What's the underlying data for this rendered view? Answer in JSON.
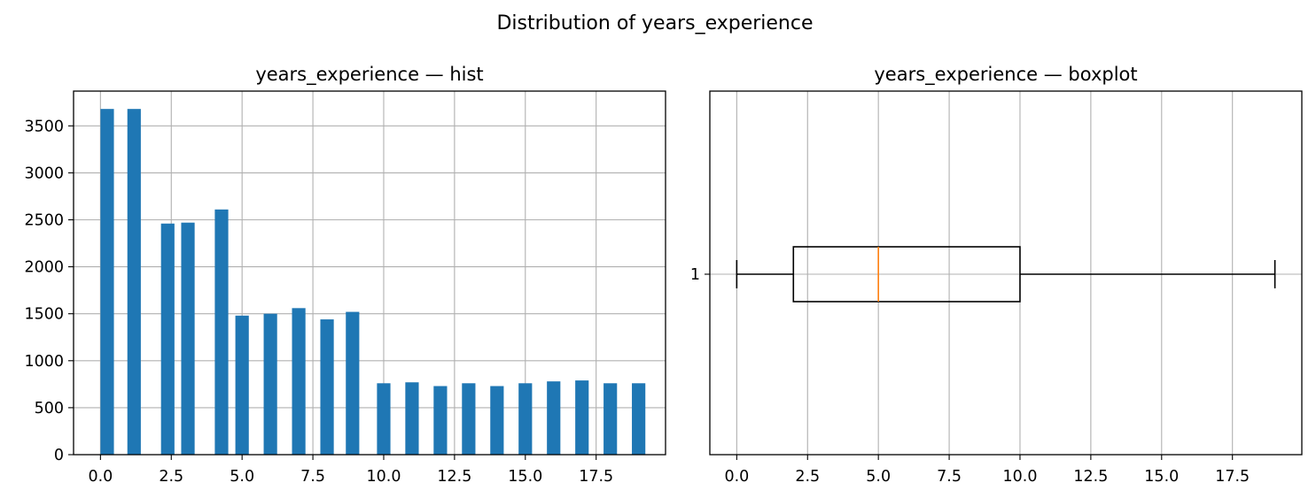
{
  "figure": {
    "suptitle": "Distribution of years_experience"
  },
  "colors": {
    "bar": "#1f77b4",
    "median": "#ff7f0e",
    "grid": "#b0b0b0",
    "axes": "#000000"
  },
  "chart_data": [
    {
      "type": "bar",
      "title": "years_experience — hist",
      "xlabel": "",
      "ylabel": "",
      "grid": true,
      "xlim": [
        -0.95,
        19.95
      ],
      "ylim": [
        0,
        3870
      ],
      "x_ticks": [
        0.0,
        2.5,
        5.0,
        7.5,
        10.0,
        12.5,
        15.0,
        17.5
      ],
      "x_tick_labels": [
        "0.0",
        "2.5",
        "5.0",
        "7.5",
        "10.0",
        "12.5",
        "15.0",
        "17.5"
      ],
      "y_ticks": [
        0,
        500,
        1000,
        1500,
        2000,
        2500,
        3000,
        3500
      ],
      "y_tick_labels": [
        "0",
        "500",
        "1000",
        "1500",
        "2000",
        "2500",
        "3000",
        "3500"
      ],
      "bar_width": 0.475,
      "bins": [
        {
          "x": 0.2375,
          "value": 3680
        },
        {
          "x": 1.1875,
          "value": 3680
        },
        {
          "x": 2.375,
          "value": 2460
        },
        {
          "x": 3.0875,
          "value": 2470
        },
        {
          "x": 4.275,
          "value": 2610
        },
        {
          "x": 5.0,
          "value": 1480
        },
        {
          "x": 6.0,
          "value": 1500
        },
        {
          "x": 7.0,
          "value": 1560
        },
        {
          "x": 8.0,
          "value": 1440
        },
        {
          "x": 8.9,
          "value": 1520
        },
        {
          "x": 10.0,
          "value": 760
        },
        {
          "x": 11.0,
          "value": 770
        },
        {
          "x": 12.0,
          "value": 730
        },
        {
          "x": 13.0,
          "value": 760
        },
        {
          "x": 14.0,
          "value": 730
        },
        {
          "x": 15.0,
          "value": 760
        },
        {
          "x": 16.0,
          "value": 780
        },
        {
          "x": 17.0,
          "value": 790
        },
        {
          "x": 18.0,
          "value": 760
        },
        {
          "x": 19.0,
          "value": 760
        }
      ]
    },
    {
      "type": "boxplot",
      "title": "years_experience — boxplot",
      "orientation": "horizontal",
      "grid": true,
      "xlim": [
        -0.95,
        19.95
      ],
      "x_ticks": [
        0.0,
        2.5,
        5.0,
        7.5,
        10.0,
        12.5,
        15.0,
        17.5
      ],
      "x_tick_labels": [
        "0.0",
        "2.5",
        "5.0",
        "7.5",
        "10.0",
        "12.5",
        "15.0",
        "17.5"
      ],
      "y_tick_labels": [
        "1"
      ],
      "stats": {
        "whisker_low": 0,
        "q1": 2,
        "median": 5,
        "q3": 10,
        "whisker_high": 19
      }
    }
  ]
}
